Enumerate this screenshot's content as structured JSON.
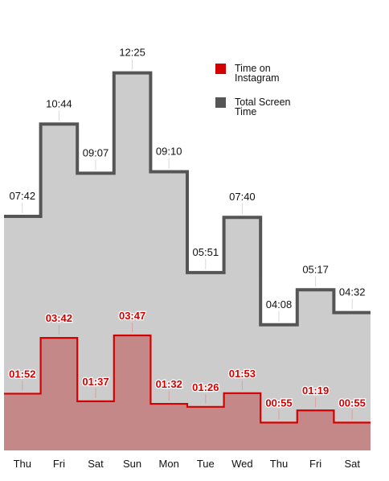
{
  "chart_data": {
    "type": "area",
    "categories": [
      "Thu",
      "Fri",
      "Sat",
      "Sun",
      "Mon",
      "Tue",
      "Wed",
      "Thu",
      "Fri",
      "Sat"
    ],
    "series": [
      {
        "name": "Total Screen Time",
        "labels": [
          "07:42",
          "10:44",
          "09:07",
          "12:25",
          "09:10",
          "05:51",
          "07:40",
          "04:08",
          "05:17",
          "04:32"
        ],
        "values_minutes": [
          462,
          644,
          547,
          745,
          550,
          351,
          460,
          248,
          317,
          272
        ],
        "color": "#555555",
        "fill": "#cccccc"
      },
      {
        "name": "Time on Instagram",
        "labels": [
          "01:52",
          "03:42",
          "01:37",
          "03:47",
          "01:32",
          "01:26",
          "01:53",
          "00:55",
          "01:19",
          "00:55"
        ],
        "values_minutes": [
          112,
          222,
          97,
          227,
          92,
          86,
          113,
          55,
          79,
          55
        ],
        "color": "#d40000",
        "fill": "#c48888"
      }
    ],
    "legend": {
      "placement": "top-right",
      "entries": [
        {
          "lines": [
            "Time on",
            "Instagram"
          ],
          "color": "#d40000"
        },
        {
          "lines": [
            "Total Screen",
            "Time"
          ],
          "color": "#555555"
        }
      ]
    },
    "grid": false
  }
}
